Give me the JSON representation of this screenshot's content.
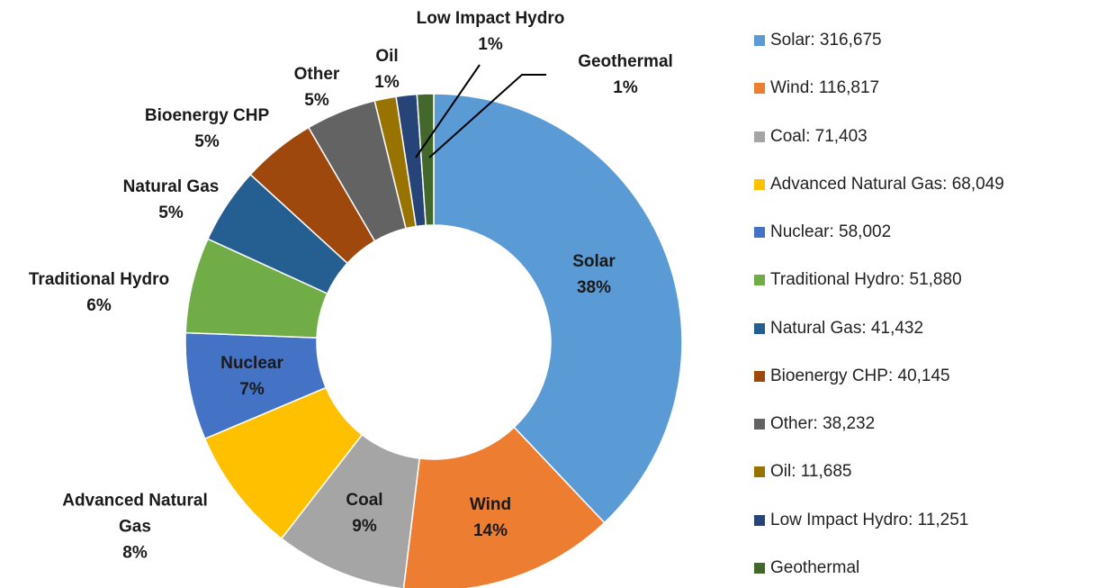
{
  "chart_data": {
    "type": "donut",
    "categories": [
      "Solar",
      "Wind",
      "Coal",
      "Advanced Natural Gas",
      "Nuclear",
      "Traditional Hydro",
      "Natural Gas",
      "Bioenergy CHP",
      "Other",
      "Oil",
      "Low Impact Hydro",
      "Geothermal"
    ],
    "values": [
      316675,
      116817,
      71403,
      68049,
      58002,
      51880,
      41432,
      40145,
      38232,
      11685,
      11251,
      9000
    ],
    "percent_labels": [
      "38%",
      "14%",
      "9%",
      "8%",
      "7%",
      "6%",
      "5%",
      "5%",
      "5%",
      "1%",
      "1%",
      "1%"
    ],
    "legend": [
      "Solar: 316,675",
      "Wind: 116,817",
      "Coal: 71,403",
      "Advanced Natural Gas: 68,049",
      "Nuclear: 58,002",
      "Traditional Hydro: 51,880",
      "Natural Gas: 41,432",
      "Bioenergy CHP: 40,145",
      "Other: 38,232",
      "Oil: 11,685",
      "Low Impact Hydro: 11,251",
      "Geothermal"
    ],
    "colors": [
      "#5b9bd5",
      "#ed7d31",
      "#a5a5a5",
      "#ffc000",
      "#4472c4",
      "#70ad47",
      "#255e91",
      "#9e480e",
      "#636363",
      "#997300",
      "#264478",
      "#43682b"
    ]
  }
}
